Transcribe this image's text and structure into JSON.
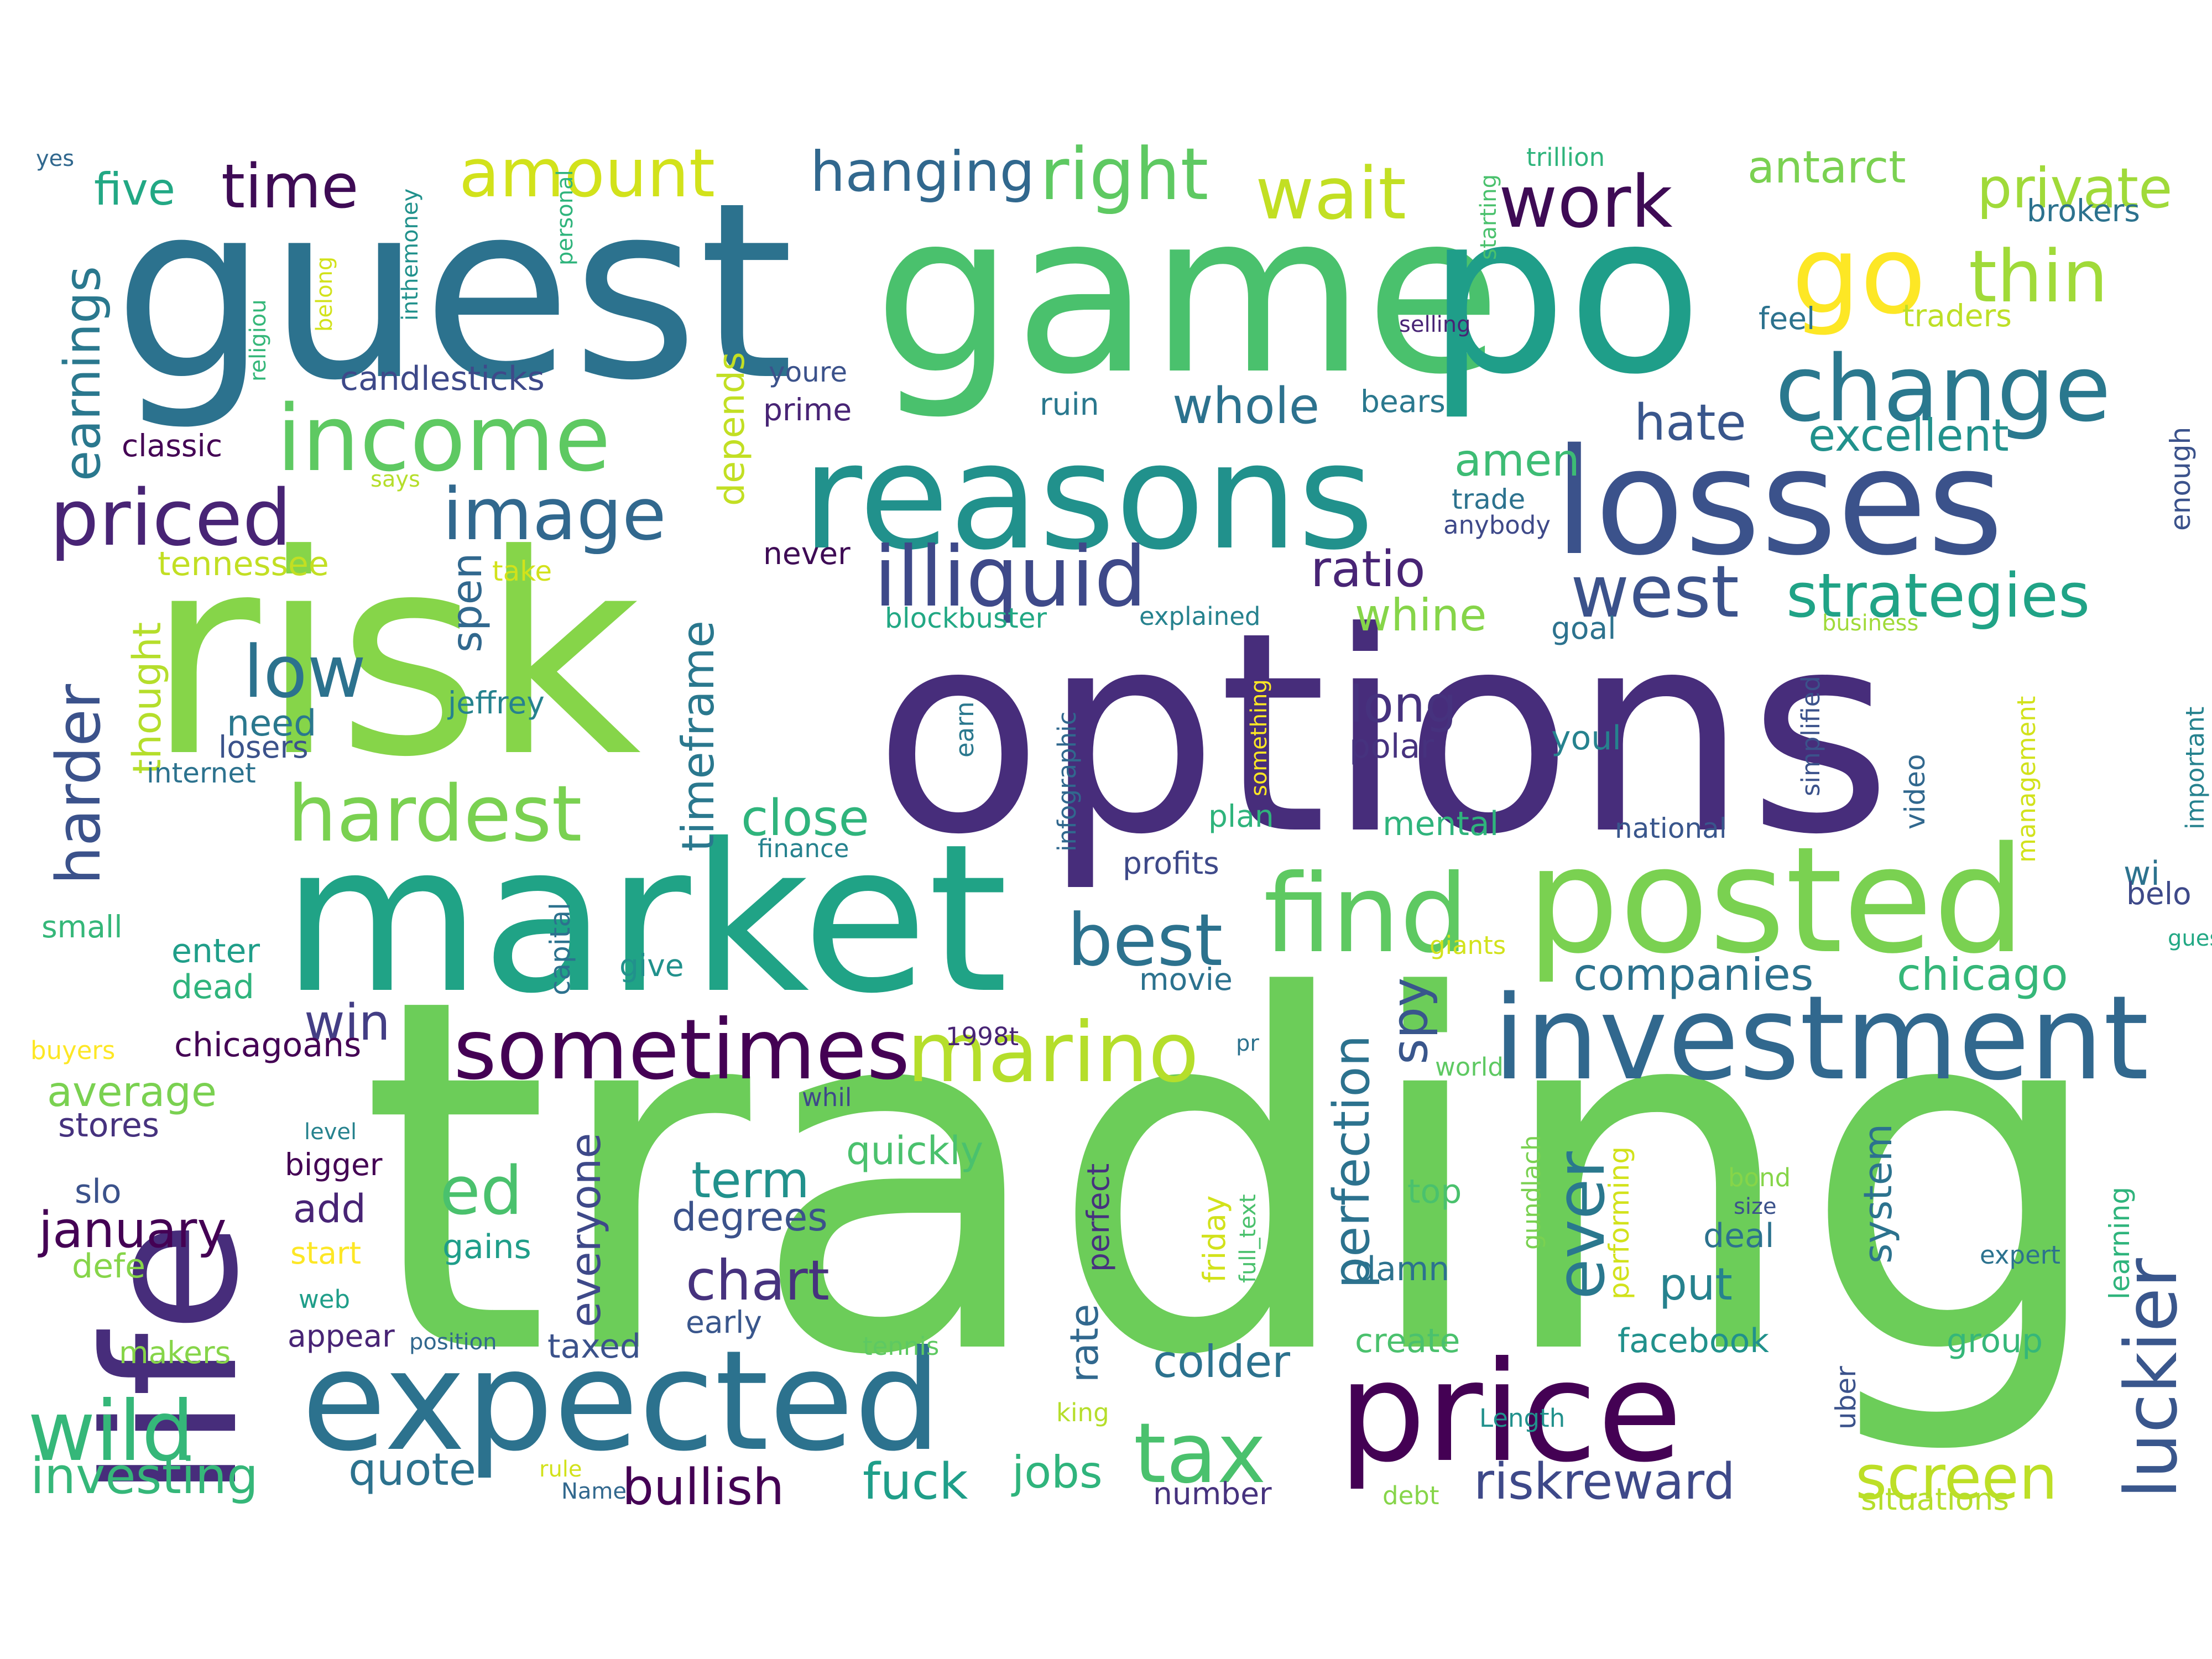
{
  "words": [
    {
      "text": "trading",
      "color": "#6ccd59"
    },
    {
      "text": "options",
      "color": "#472d7b"
    },
    {
      "text": "risk",
      "color": "#86d549"
    },
    {
      "text": "guest",
      "color": "#2c728e"
    },
    {
      "text": "game",
      "color": "#4ac16d"
    },
    {
      "text": "po",
      "color": "#1f9e89"
    },
    {
      "text": "market",
      "color": "#20a386"
    },
    {
      "text": "life",
      "color": "#472d7b"
    },
    {
      "text": "reasons",
      "color": "#21918c"
    },
    {
      "text": "losses",
      "color": "#3b528b"
    },
    {
      "text": "posted",
      "color": "#7ad151"
    },
    {
      "text": "expected",
      "color": "#2c728e"
    },
    {
      "text": "price",
      "color": "#440154"
    },
    {
      "text": "investment",
      "color": "#31688e"
    },
    {
      "text": "find",
      "color": "#5ec962"
    },
    {
      "text": "go",
      "color": "#fde725"
    },
    {
      "text": "income",
      "color": "#5ec962"
    },
    {
      "text": "change",
      "color": "#2a788e"
    },
    {
      "text": "illiquid",
      "color": "#3e4989"
    },
    {
      "text": "sometimes",
      "color": "#440154"
    },
    {
      "text": "marino",
      "color": "#b5de2b"
    },
    {
      "text": "wild",
      "color": "#35b779"
    },
    {
      "text": "tax",
      "color": "#4ac16d"
    },
    {
      "text": "hardest",
      "color": "#7ad151"
    },
    {
      "text": "priced",
      "color": "#482475"
    },
    {
      "text": "image",
      "color": "#31688e"
    },
    {
      "text": "low",
      "color": "#2c728e"
    },
    {
      "text": "west",
      "color": "#3b528b"
    },
    {
      "text": "strategies",
      "color": "#20a386"
    },
    {
      "text": "wait",
      "color": "#c2df23"
    },
    {
      "text": "work",
      "color": "#3e0b55"
    },
    {
      "text": "right",
      "color": "#5ec962"
    },
    {
      "text": "thin",
      "color": "#a0da39"
    },
    {
      "text": "best",
      "color": "#2c728e"
    },
    {
      "text": "close",
      "color": "#2fb47c"
    },
    {
      "text": "screen",
      "color": "#bddf26"
    },
    {
      "text": "luckier",
      "color": "#39568c"
    },
    {
      "text": "ever",
      "color": "#2a788e"
    },
    {
      "text": "amount",
      "color": "#d2e21b"
    },
    {
      "text": "hanging",
      "color": "#31688e"
    },
    {
      "text": "time",
      "color": "#3e0b55"
    },
    {
      "text": "five",
      "color": "#22a884"
    },
    {
      "text": "earnings",
      "color": "#2a788e"
    },
    {
      "text": "harder",
      "color": "#3b528b"
    },
    {
      "text": "thought",
      "color": "#b5de2b"
    },
    {
      "text": "ed",
      "color": "#4ac16d"
    },
    {
      "text": "chart",
      "color": "#46327e"
    },
    {
      "text": "perfection",
      "color": "#2c728e"
    },
    {
      "text": "companies",
      "color": "#2c728e"
    },
    {
      "text": "chicago",
      "color": "#35b779"
    },
    {
      "text": "private",
      "color": "#a0da39"
    },
    {
      "text": "antarct",
      "color": "#7ad151"
    },
    {
      "text": "excellent",
      "color": "#21918c"
    },
    {
      "text": "hate",
      "color": "#39568c"
    },
    {
      "text": "whole",
      "color": "#2c728e"
    },
    {
      "text": "long",
      "color": "#46327e"
    },
    {
      "text": "ratio",
      "color": "#482475"
    },
    {
      "text": "whine",
      "color": "#86d549"
    },
    {
      "text": "amen",
      "color": "#3dbc74"
    },
    {
      "text": "timeframe",
      "color": "#2a788e"
    },
    {
      "text": "depends",
      "color": "#c2df23"
    },
    {
      "text": "spen",
      "color": "#31688e"
    },
    {
      "text": "win",
      "color": "#433e85"
    },
    {
      "text": "average",
      "color": "#7ad151"
    },
    {
      "text": "january",
      "color": "#440154"
    },
    {
      "text": "everyone",
      "color": "#3e4989"
    },
    {
      "text": "term",
      "color": "#21918c"
    },
    {
      "text": "degrees",
      "color": "#3b528b"
    },
    {
      "text": "quickly",
      "color": "#4ac16d"
    },
    {
      "text": "bullish",
      "color": "#440154"
    },
    {
      "text": "fuck",
      "color": "#1f9e89"
    },
    {
      "text": "jobs",
      "color": "#2fb47c"
    },
    {
      "text": "investing",
      "color": "#35b779"
    },
    {
      "text": "quote",
      "color": "#2c728e"
    },
    {
      "text": "riskreward",
      "color": "#3e4989"
    },
    {
      "text": "spy",
      "color": "#39568c"
    },
    {
      "text": "put",
      "color": "#26828e"
    },
    {
      "text": "system",
      "color": "#2c728e"
    },
    {
      "text": "colder",
      "color": "#2c728e"
    },
    {
      "text": "rate",
      "color": "#31688e"
    },
    {
      "text": "add",
      "color": "#482475"
    },
    {
      "text": "need",
      "color": "#2a788e"
    },
    {
      "text": "tennessee",
      "color": "#c2df23"
    },
    {
      "text": "candlesticks",
      "color": "#3e4989"
    },
    {
      "text": "classic",
      "color": "#440154"
    },
    {
      "text": "jeffrey",
      "color": "#26828e"
    },
    {
      "text": "losers",
      "color": "#3b528b"
    },
    {
      "text": "internet",
      "color": "#2c728e"
    },
    {
      "text": "small",
      "color": "#35b779"
    },
    {
      "text": "enter",
      "color": "#1f9e89"
    },
    {
      "text": "dead",
      "color": "#2fb47c"
    },
    {
      "text": "chicagoans",
      "color": "#440154"
    },
    {
      "text": "stores",
      "color": "#46327e"
    },
    {
      "text": "slo",
      "color": "#3b528b"
    },
    {
      "text": "defe",
      "color": "#86d549"
    },
    {
      "text": "start",
      "color": "#fde725"
    },
    {
      "text": "gains",
      "color": "#1f9e89"
    },
    {
      "text": "bigger",
      "color": "#440154"
    },
    {
      "text": "level",
      "color": "#26828e"
    },
    {
      "text": "web",
      "color": "#1f9e89"
    },
    {
      "text": "appear",
      "color": "#482475"
    },
    {
      "text": "makers",
      "color": "#86d549"
    },
    {
      "text": "buyers",
      "color": "#fde725"
    },
    {
      "text": "position",
      "color": "#31688e"
    },
    {
      "text": "taxed",
      "color": "#3b528b"
    },
    {
      "text": "early",
      "color": "#39568c"
    },
    {
      "text": "tennis",
      "color": "#5ec962"
    },
    {
      "text": "rule",
      "color": "#d2e21b"
    },
    {
      "text": "Name",
      "color": "#31688e"
    },
    {
      "text": "number",
      "color": "#46327e"
    },
    {
      "text": "create",
      "color": "#4ac16d"
    },
    {
      "text": "facebook",
      "color": "#21918c"
    },
    {
      "text": "debt",
      "color": "#86d549"
    },
    {
      "text": "situations",
      "color": "#b5de2b"
    },
    {
      "text": "group",
      "color": "#35b779"
    },
    {
      "text": "uber",
      "color": "#3b528b"
    },
    {
      "text": "Length",
      "color": "#21918c"
    },
    {
      "text": "king",
      "color": "#b5de2b"
    },
    {
      "text": "damn",
      "color": "#2c728e"
    },
    {
      "text": "top",
      "color": "#4ac16d"
    },
    {
      "text": "deal",
      "color": "#2c728e"
    },
    {
      "text": "bond",
      "color": "#86d549"
    },
    {
      "text": "size",
      "color": "#3b528b"
    },
    {
      "text": "expert",
      "color": "#2c728e"
    },
    {
      "text": "learning",
      "color": "#2fb47c"
    },
    {
      "text": "gundlach",
      "color": "#7ad151"
    },
    {
      "text": "performing",
      "color": "#d2e21b"
    },
    {
      "text": "friday",
      "color": "#d2e21b"
    },
    {
      "text": "full_text",
      "color": "#4ac16d"
    },
    {
      "text": "perfect",
      "color": "#46327e"
    },
    {
      "text": "world",
      "color": "#5ec962"
    },
    {
      "text": "pr",
      "color": "#2c728e"
    },
    {
      "text": "giants",
      "color": "#d2e21b"
    },
    {
      "text": "movie",
      "color": "#2c728e"
    },
    {
      "text": "whil",
      "color": "#3e4989"
    },
    {
      "text": "1998t",
      "color": "#482475"
    },
    {
      "text": "give",
      "color": "#21918c"
    },
    {
      "text": "capital",
      "color": "#2c728e"
    },
    {
      "text": "finance",
      "color": "#26828e"
    },
    {
      "text": "profits",
      "color": "#3e4989"
    },
    {
      "text": "plan",
      "color": "#2fb47c"
    },
    {
      "text": "mental",
      "color": "#2fb47c"
    },
    {
      "text": "national",
      "color": "#39568c"
    },
    {
      "text": "polar",
      "color": "#46327e"
    },
    {
      "text": "youl",
      "color": "#26828e"
    },
    {
      "text": "earn",
      "color": "#2a788e"
    },
    {
      "text": "infographic",
      "color": "#31688e"
    },
    {
      "text": "something",
      "color": "#fde725"
    },
    {
      "text": "video",
      "color": "#31688e"
    },
    {
      "text": "simplified",
      "color": "#3b528b"
    },
    {
      "text": "management",
      "color": "#d2e21b"
    },
    {
      "text": "important",
      "color": "#26828e"
    },
    {
      "text": "enough",
      "color": "#3b528b"
    },
    {
      "text": "business",
      "color": "#a0da39"
    },
    {
      "text": "goal",
      "color": "#2c728e"
    },
    {
      "text": "anybody",
      "color": "#3e4989"
    },
    {
      "text": "trade",
      "color": "#2c728e"
    },
    {
      "text": "explained",
      "color": "#26828e"
    },
    {
      "text": "blockbuster",
      "color": "#22a884"
    },
    {
      "text": "never",
      "color": "#3e0b55"
    },
    {
      "text": "take",
      "color": "#d2e21b"
    },
    {
      "text": "ruin",
      "color": "#2a788e"
    },
    {
      "text": "bears",
      "color": "#2a788e"
    },
    {
      "text": "prime",
      "color": "#482475"
    },
    {
      "text": "youre",
      "color": "#3b528b"
    },
    {
      "text": "feel",
      "color": "#2c728e"
    },
    {
      "text": "traders",
      "color": "#bddf26"
    },
    {
      "text": "brokers",
      "color": "#2c728e"
    },
    {
      "text": "trillion",
      "color": "#2fb47c"
    },
    {
      "text": "selling",
      "color": "#482475"
    },
    {
      "text": "starting",
      "color": "#4ac16d"
    },
    {
      "text": "personal",
      "color": "#2fb47c"
    },
    {
      "text": "inthemoney",
      "color": "#21918c"
    },
    {
      "text": "belong",
      "color": "#d2e21b"
    },
    {
      "text": "religiou",
      "color": "#35b779"
    },
    {
      "text": "yes",
      "color": "#31688e"
    },
    {
      "text": "says",
      "color": "#b5de2b"
    },
    {
      "text": "wi",
      "color": "#2c728e"
    },
    {
      "text": "belo",
      "color": "#3e4989"
    },
    {
      "text": "gues",
      "color": "#22a884"
    }
  ]
}
